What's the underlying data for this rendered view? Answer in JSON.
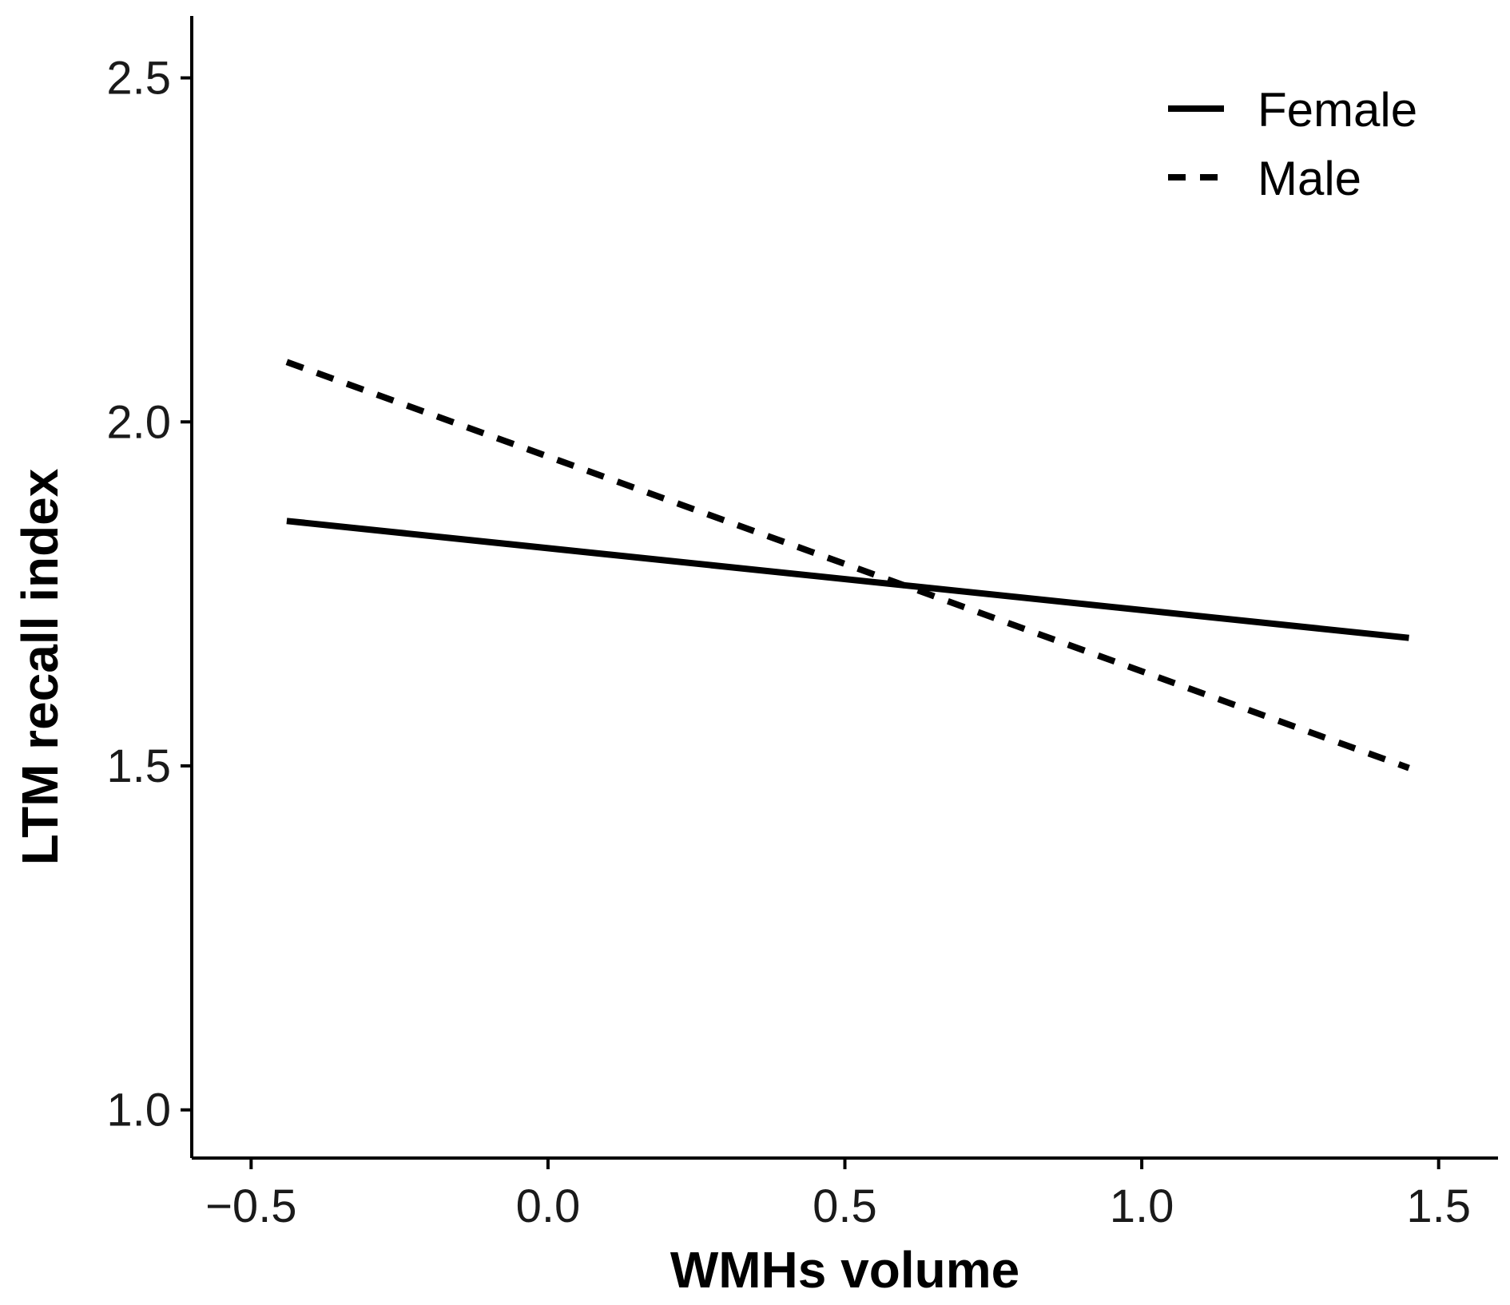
{
  "chart_data": {
    "type": "line",
    "title": "",
    "xlabel": "WMHs volume",
    "ylabel": "LTM recall index",
    "xlim": [
      -0.6,
      1.6
    ],
    "ylim": [
      0.93,
      2.59
    ],
    "x_ticks": [
      -0.5,
      0.0,
      0.5,
      1.0,
      1.5
    ],
    "x_tick_labels": [
      "−0.5",
      "0.0",
      "0.5",
      "1.0",
      "1.5"
    ],
    "y_ticks": [
      1.0,
      1.5,
      2.0,
      2.5
    ],
    "y_tick_labels": [
      "1.0",
      "1.5",
      "2.0",
      "2.5"
    ],
    "grid": false,
    "legend_position": "top-right",
    "series": [
      {
        "name": "Female",
        "style": "solid",
        "color": "#000000",
        "x": [
          -0.44,
          1.45
        ],
        "y": [
          1.856,
          1.686
        ]
      },
      {
        "name": "Male",
        "style": "dashed",
        "color": "#000000",
        "x": [
          -0.44,
          1.45
        ],
        "y": [
          2.087,
          1.497
        ]
      }
    ]
  }
}
